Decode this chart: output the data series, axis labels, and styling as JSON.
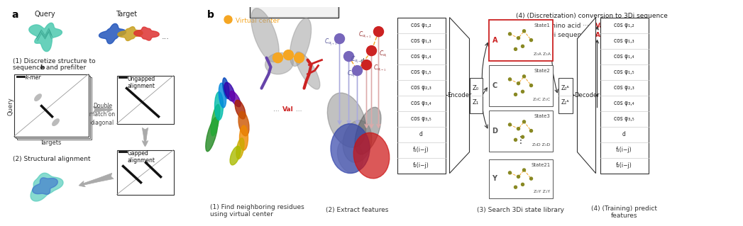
{
  "bg_color": "#ffffff",
  "panel_a_label": "a",
  "panel_b_label": "b",
  "query_label": "Query",
  "target_label": "Target",
  "step1_text_line1": "(1) Discretize structure to",
  "step1_text_line2_pre": "sequence ",
  "step1_text_line2_bold": "b",
  "step1_text_line2_post": " and prefilter",
  "step2_text": "(2) Structural alignment",
  "kmer_label": "k-mer",
  "query_axis": "Query",
  "targets_axis": "Targets",
  "double_match": "Double\nmatch on\ndiagonal",
  "ungapped": "Ungapped\nalignment",
  "gapped": "Gapped\nalignment",
  "virtual_center": "Virtual center",
  "find_neighboring": "(1) Find neighboring residues\nusing virtual center",
  "extract_features": "(2) Extract features",
  "search_3di": "(3) Search 3Di state library",
  "training_predict": "(4) (Training) predict\nfeatures",
  "discretization": "(4) (Discretization) conversion to 3Di sequence",
  "amino_acid_pre": "Amino acid ···",
  "amino_val": "Val",
  "amino_acid_post": "···",
  "threedi_pre": "3Di sequence ···",
  "threedi_a": "A",
  "threedi_post": " ···",
  "encoder_label": "Encoder",
  "decoder_label": "Decoder",
  "features_left": [
    "cos φ₁,₂",
    "cos φ₁,₃",
    "cos φ₁,₄",
    "cos φ₁,₅",
    "cos φ₂,₃",
    "cos φ₃,₄",
    "cos φ₃,₅",
    "d",
    "f₁(i−j)",
    "f₂(i−j)"
  ],
  "features_right": [
    "cos φ₁,₂",
    "cos φ₁,₃",
    "cos φ₁,₄",
    "cos φ₁,₅",
    "cos φ₂,₃",
    "cos φ₃,₄",
    "cos φ₃,₅",
    "d",
    "f₁(i−j)",
    "f₂(i−j)"
  ],
  "state_entries": [
    {
      "letter": "A",
      "state": "State1",
      "highlight": true
    },
    {
      "letter": "C",
      "state": "State2",
      "highlight": false
    },
    {
      "letter": "D",
      "state": "State3",
      "highlight": false
    },
    {
      "letter": "Y",
      "state": "State21",
      "highlight": false
    }
  ],
  "color_query": "#4ec9b0",
  "color_blue_prot": "#2255bb",
  "color_gold_prot": "#c8a020",
  "color_red_prot": "#dd3333",
  "color_orange": "#f5a623",
  "color_purple": "#6644aa",
  "color_red_ca": "#cc2222",
  "color_blue_arrow": "#9999cc",
  "color_red_arrow": "#cc8888",
  "color_gray_arrow": "#aaaaaa",
  "color_dark_gray": "#555555",
  "color_val_red": "#cc2222",
  "color_a_red": "#cc2222",
  "color_state1_border": "#cc2222",
  "color_dot_olive": "#888822"
}
